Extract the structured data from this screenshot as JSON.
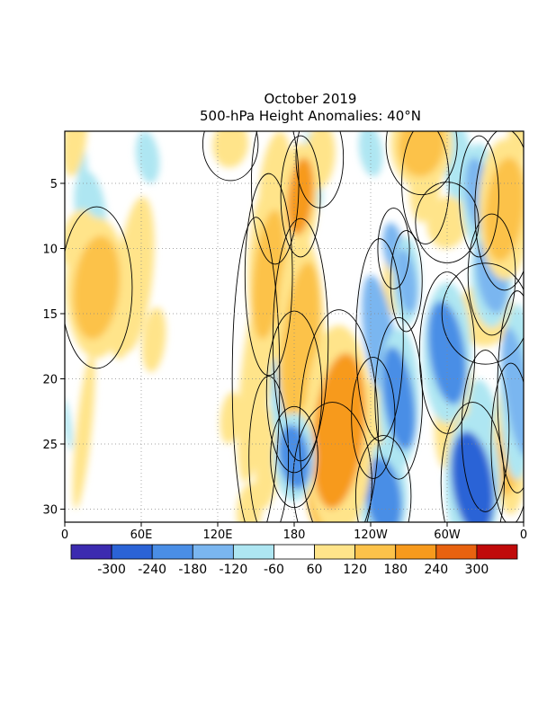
{
  "chart_data": {
    "type": "heatmap",
    "title": "October 2019",
    "subtitle": "500-hPa Height Anomalies: 40°N",
    "xlabel": "",
    "ylabel": "",
    "x_ticks": [
      {
        "lon": 0,
        "label": "0"
      },
      {
        "lon": 60,
        "label": "60E"
      },
      {
        "lon": 120,
        "label": "120E"
      },
      {
        "lon": 180,
        "label": "180"
      },
      {
        "lon": 240,
        "label": "120W"
      },
      {
        "lon": 300,
        "label": "60W"
      },
      {
        "lon": 360,
        "label": "0"
      }
    ],
    "xlim": [
      0,
      360
    ],
    "y_ticks": [
      5,
      10,
      15,
      20,
      25,
      30
    ],
    "ylim": [
      1,
      31
    ],
    "y_reversed": true,
    "grid": true,
    "contour_label": "0",
    "colorbar": {
      "colors": [
        "#3c2bb0",
        "#2b63d6",
        "#4a8ee6",
        "#7ab6f0",
        "#aee6f2",
        "#ffffff",
        "#ffe48a",
        "#fcc24a",
        "#f79a1d",
        "#e8620f",
        "#c00a0a"
      ],
      "labels": [
        "-300",
        "-240",
        "-180",
        "-120",
        "-60",
        "60",
        "120",
        "180",
        "240",
        "300"
      ]
    },
    "anomaly_features": [
      {
        "lon": 8,
        "day": 1.5,
        "rx": 9,
        "ry": 3,
        "value": 70
      },
      {
        "lon": 12,
        "day": 9.5,
        "rx": 14,
        "ry": 2.5,
        "value": 80
      },
      {
        "lon": 25,
        "day": 13,
        "rx": 18,
        "ry": 4,
        "value": 140
      },
      {
        "lon": 55,
        "day": 12,
        "rx": 14,
        "ry": 6,
        "value": 90
      },
      {
        "lon": 15,
        "day": 24,
        "rx": 6,
        "ry": 6,
        "value": 70
      },
      {
        "lon": 20,
        "day": 7,
        "rx": 12,
        "ry": 3,
        "value": -70
      },
      {
        "lon": 12,
        "day": 3,
        "rx": 5,
        "ry": 2,
        "value": -60
      },
      {
        "lon": 65,
        "day": 3,
        "rx": 9,
        "ry": 2,
        "value": -60
      },
      {
        "lon": 45,
        "day": 16,
        "rx": 9,
        "ry": 2.5,
        "value": 70
      },
      {
        "lon": 70,
        "day": 17,
        "rx": 9,
        "ry": 2.5,
        "value": 70
      },
      {
        "lon": 130,
        "day": 2,
        "rx": 14,
        "ry": 1.8,
        "value": 120
      },
      {
        "lon": 100,
        "day": 24,
        "rx": 9,
        "ry": 2.5,
        "value": -50
      },
      {
        "lon": 118,
        "day": 28.5,
        "rx": 8,
        "ry": 1.8,
        "value": -40
      },
      {
        "lon": 160,
        "day": 12,
        "rx": 12,
        "ry": 5,
        "value": 160
      },
      {
        "lon": 185,
        "day": 17,
        "rx": 14,
        "ry": 6,
        "value": 160
      },
      {
        "lon": 150,
        "day": 20,
        "rx": 12,
        "ry": 8,
        "value": 100
      },
      {
        "lon": 185,
        "day": 6,
        "rx": 10,
        "ry": 3,
        "value": 200
      },
      {
        "lon": 165,
        "day": 5,
        "rx": 12,
        "ry": 4,
        "value": 110
      },
      {
        "lon": 200,
        "day": 3,
        "rx": 12,
        "ry": 2.5,
        "value": 110
      },
      {
        "lon": 215,
        "day": 24,
        "rx": 20,
        "ry": 6,
        "value": 210
      },
      {
        "lon": 210,
        "day": 28,
        "rx": 20,
        "ry": 4,
        "value": 130
      },
      {
        "lon": 242,
        "day": 23,
        "rx": 11,
        "ry": 3,
        "value": 110
      },
      {
        "lon": 160,
        "day": 26,
        "rx": 10,
        "ry": 4,
        "value": 100
      },
      {
        "lon": 145,
        "day": 30,
        "rx": 10,
        "ry": 2,
        "value": 70
      },
      {
        "lon": 130,
        "day": 23,
        "rx": 8,
        "ry": 2,
        "value": 70
      },
      {
        "lon": 152,
        "day": 9,
        "rx": 8,
        "ry": 2,
        "value": 60
      },
      {
        "lon": 280,
        "day": 2,
        "rx": 18,
        "ry": 2.5,
        "value": 170
      },
      {
        "lon": 260,
        "day": 12,
        "rx": 10,
        "ry": 3,
        "value": 90
      },
      {
        "lon": 283,
        "day": 5,
        "rx": 12,
        "ry": 3,
        "value": 120
      },
      {
        "lon": 300,
        "day": 8,
        "rx": 16,
        "ry": 2,
        "value": 120
      },
      {
        "lon": 345,
        "day": 7,
        "rx": 15,
        "ry": 4,
        "value": 170
      },
      {
        "lon": 355,
        "day": 2,
        "rx": 8,
        "ry": 2.5,
        "value": 90
      },
      {
        "lon": 330,
        "day": 15,
        "rx": 22,
        "ry": 2.5,
        "value": 110
      },
      {
        "lon": 305,
        "day": 22,
        "rx": 14,
        "ry": 5,
        "value": 90
      },
      {
        "lon": 350,
        "day": 25,
        "rx": 10,
        "ry": 4,
        "value": 140
      },
      {
        "lon": 285,
        "day": 30,
        "rx": 10,
        "ry": 2,
        "value": 60
      },
      {
        "lon": 310,
        "day": 4,
        "rx": 12,
        "ry": 4,
        "value": -80
      },
      {
        "lon": 325,
        "day": 6,
        "rx": 10,
        "ry": 3,
        "value": -150
      },
      {
        "lon": 195,
        "day": 4,
        "rx": 6,
        "ry": 3,
        "value": -70
      },
      {
        "lon": 240,
        "day": 2.5,
        "rx": 9,
        "ry": 2,
        "value": -70
      },
      {
        "lon": 258,
        "day": 10,
        "rx": 8,
        "ry": 2,
        "value": -120
      },
      {
        "lon": 268,
        "day": 12.5,
        "rx": 8,
        "ry": 2.5,
        "value": -150
      },
      {
        "lon": 335,
        "day": 12,
        "rx": 12,
        "ry": 3,
        "value": -160
      },
      {
        "lon": 300,
        "day": 18,
        "rx": 14,
        "ry": 4,
        "value": -230
      },
      {
        "lon": 247,
        "day": 17,
        "rx": 12,
        "ry": 5,
        "value": -130
      },
      {
        "lon": 262,
        "day": 21.5,
        "rx": 12,
        "ry": 4,
        "value": -200
      },
      {
        "lon": 355,
        "day": 21,
        "rx": 10,
        "ry": 5,
        "value": -160
      },
      {
        "lon": 330,
        "day": 24,
        "rx": 12,
        "ry": 4,
        "value": -110
      },
      {
        "lon": 320,
        "day": 28,
        "rx": 16,
        "ry": 4,
        "value": -290
      },
      {
        "lon": 250,
        "day": 29,
        "rx": 14,
        "ry": 3,
        "value": -200
      },
      {
        "lon": 180,
        "day": 21,
        "rx": 14,
        "ry": 4,
        "value": -150
      },
      {
        "lon": 180,
        "day": 26,
        "rx": 12,
        "ry": 2.5,
        "value": -220
      },
      {
        "lon": 2,
        "day": 23.5,
        "rx": 3,
        "ry": 2,
        "value": -70
      }
    ]
  }
}
